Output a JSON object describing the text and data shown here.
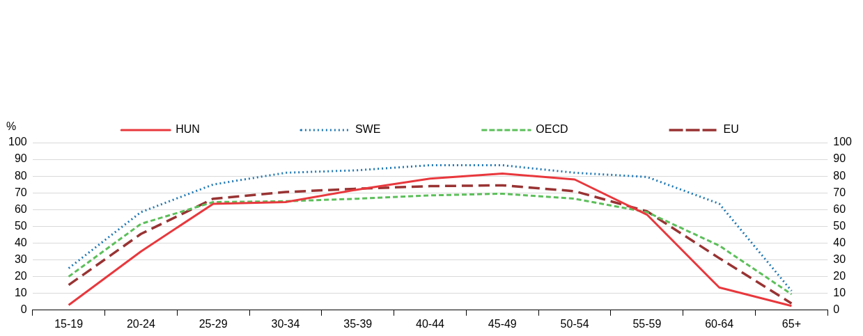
{
  "chart_data": {
    "type": "line",
    "ylabel": "%",
    "categories": [
      "15-19",
      "20-24",
      "25-29",
      "30-34",
      "35-39",
      "40-44",
      "45-49",
      "50-54",
      "55-59",
      "60-64",
      "65+"
    ],
    "series": [
      {
        "name": "HUN",
        "color": "#e8383d",
        "line_style": "solid",
        "values": [
          3,
          35,
          63.5,
          64.5,
          72,
          78.5,
          81.5,
          78,
          57,
          13.5,
          2.5
        ]
      },
      {
        "name": "SWE",
        "color": "#1f78b4",
        "line_style": "dotted",
        "values": [
          25,
          58.5,
          75,
          82,
          83.5,
          86.5,
          86.5,
          82,
          79.5,
          63.5,
          11.5
        ]
      },
      {
        "name": "OECD",
        "color": "#5cbf5a",
        "line_style": "dashed",
        "values": [
          20,
          51.5,
          64.5,
          65,
          66.5,
          68.5,
          69.5,
          66.5,
          58.5,
          38.5,
          9.5
        ]
      },
      {
        "name": "EU",
        "color": "#993333",
        "line_style": "longdash",
        "values": [
          15,
          45.5,
          66.5,
          70.5,
          72.5,
          74,
          74.5,
          71,
          59,
          31,
          4
        ]
      }
    ],
    "ylim": [
      0,
      100
    ],
    "yticks": [
      0,
      10,
      20,
      30,
      40,
      50,
      60,
      70,
      80,
      90,
      100
    ],
    "y2lim": [
      0,
      100
    ],
    "y2ticks": [
      0,
      10,
      20,
      30,
      40,
      50,
      60,
      70,
      80,
      90,
      100
    ],
    "grid": "y",
    "legend": "top",
    "marker": "none"
  }
}
